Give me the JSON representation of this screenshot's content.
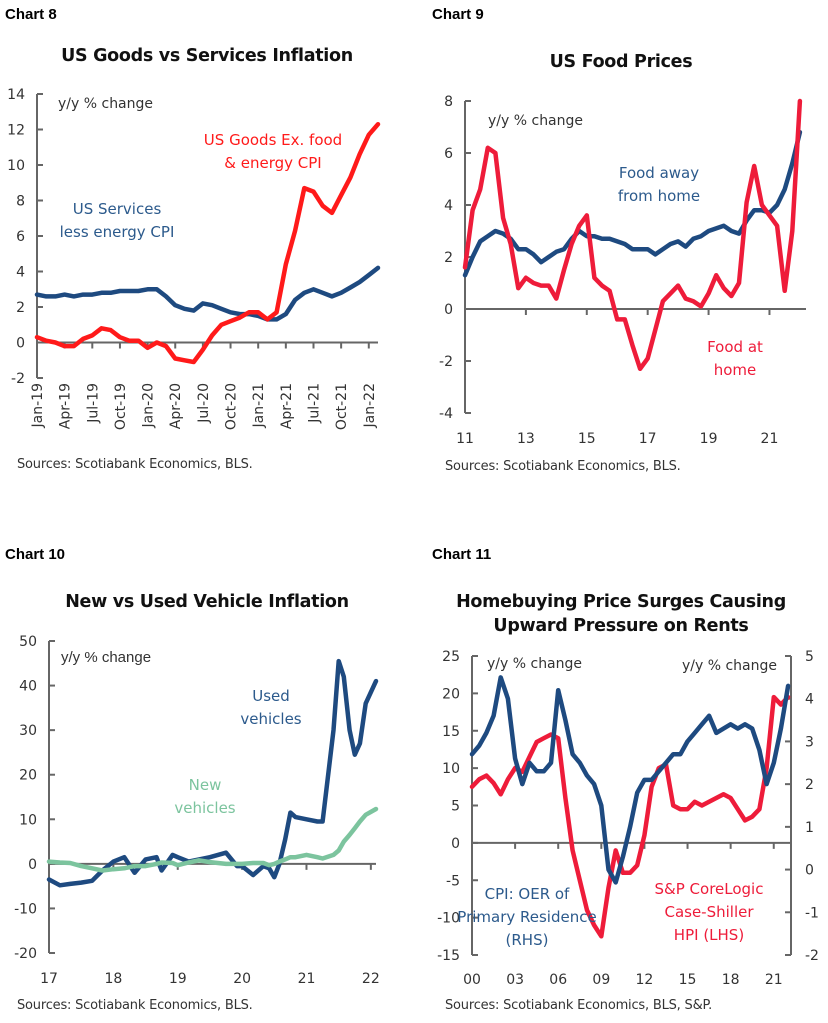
{
  "charts_page": {
    "panels": [
      {
        "label": "Chart 8",
        "title": "US Goods vs Services Inflation",
        "source": "Sources: Scotiabank Economics, BLS."
      },
      {
        "label": "Chart 9",
        "title": "US Food Prices",
        "source": "Sources: Scotiabank Economics, BLS."
      },
      {
        "label": "Chart 10",
        "title": "New vs Used Vehicle Inflation",
        "source": "Sources: Scotiabank Economics, BLS."
      },
      {
        "label": "Chart 11",
        "title_lines": [
          "Homebuying Price Surges Causing",
          "Upward Pressure on Rents"
        ],
        "source": "Sources: Scotiabank Economics, BLS, S&P."
      }
    ]
  },
  "colors": {
    "red": "#ff1a1a",
    "red2": "#ee1c3a",
    "navy": "#1e4a80",
    "green": "#7cc49e",
    "axis": "#666666"
  },
  "chart_data": [
    {
      "type": "line",
      "title": "US Goods vs Services Inflation",
      "ylabel": "y/y % change",
      "ylim": [
        -2,
        14
      ],
      "yticks": [
        "14",
        "12",
        "10",
        "8",
        "6",
        "4",
        "2",
        "0",
        "-2"
      ],
      "ytick_values": [
        14,
        12,
        10,
        8,
        6,
        4,
        2,
        0,
        -2
      ],
      "x_ticks": [
        "Jan-19",
        "Apr-19",
        "Jul-19",
        "Oct-19",
        "Jan-20",
        "Apr-20",
        "Jul-20",
        "Oct-20",
        "Jan-21",
        "Apr-21",
        "Jul-21",
        "Oct-21",
        "Jan-22"
      ],
      "x": [
        0,
        1,
        2,
        3,
        4,
        5,
        6,
        7,
        8,
        9,
        10,
        11,
        12,
        13,
        14,
        15,
        16,
        17,
        18,
        19,
        20,
        21,
        22,
        23,
        24,
        25,
        26,
        27,
        28,
        29,
        30,
        31,
        32,
        33,
        34,
        35,
        36,
        37
      ],
      "xlim": [
        0,
        37
      ],
      "series": [
        {
          "name": "US Services less energy CPI",
          "label_lines": [
            "US Services",
            "less energy CPI"
          ],
          "color": "#1e4a80",
          "values": [
            2.7,
            2.6,
            2.6,
            2.7,
            2.6,
            2.7,
            2.7,
            2.8,
            2.8,
            2.9,
            2.9,
            2.9,
            3.0,
            3.0,
            2.6,
            2.1,
            1.9,
            1.8,
            2.2,
            2.1,
            1.9,
            1.7,
            1.6,
            1.6,
            1.5,
            1.3,
            1.3,
            1.6,
            2.4,
            2.8,
            3.0,
            2.8,
            2.6,
            2.8,
            3.1,
            3.4,
            3.8,
            4.2
          ]
        },
        {
          "name": "US Goods Ex. food & energy CPI",
          "label_lines": [
            "US Goods Ex. food",
            "& energy CPI"
          ],
          "color": "#ff1a1a",
          "values": [
            0.3,
            0.1,
            0.0,
            -0.2,
            -0.2,
            0.2,
            0.4,
            0.8,
            0.7,
            0.3,
            0.1,
            0.1,
            -0.3,
            0.0,
            -0.2,
            -0.9,
            -1.0,
            -1.1,
            -0.4,
            0.4,
            1.0,
            1.2,
            1.4,
            1.7,
            1.7,
            1.3,
            1.7,
            4.4,
            6.3,
            8.7,
            8.5,
            7.7,
            7.3,
            8.3,
            9.3,
            10.6,
            11.7,
            12.3
          ]
        }
      ],
      "source": "Sources: Scotiabank Economics, BLS."
    },
    {
      "type": "line",
      "title": "US Food Prices",
      "ylabel": "y/y % change",
      "ylim": [
        -4,
        8
      ],
      "yticks": [
        "8",
        "6",
        "4",
        "2",
        "0",
        "-2",
        "-4"
      ],
      "ytick_values": [
        8,
        6,
        4,
        2,
        0,
        -2,
        -4
      ],
      "x_ticks": [
        "11",
        "13",
        "15",
        "17",
        "19",
        "21"
      ],
      "x_tick_values": [
        2011,
        2013,
        2015,
        2017,
        2019,
        2021
      ],
      "xlim": [
        2011,
        2022.2
      ],
      "x": [
        2011.0,
        2011.25,
        2011.5,
        2011.75,
        2012.0,
        2012.25,
        2012.5,
        2012.75,
        2013.0,
        2013.25,
        2013.5,
        2013.75,
        2014.0,
        2014.25,
        2014.5,
        2014.75,
        2015.0,
        2015.25,
        2015.5,
        2015.75,
        2016.0,
        2016.25,
        2016.5,
        2016.75,
        2017.0,
        2017.25,
        2017.5,
        2017.75,
        2018.0,
        2018.25,
        2018.5,
        2018.75,
        2019.0,
        2019.25,
        2019.5,
        2019.75,
        2020.0,
        2020.25,
        2020.5,
        2020.75,
        2021.0,
        2021.25,
        2021.5,
        2021.75,
        2022.0
      ],
      "series": [
        {
          "name": "Food away from home",
          "label_lines": [
            "Food away",
            "from home"
          ],
          "color": "#1e4a80",
          "values": [
            1.3,
            2.0,
            2.6,
            2.8,
            3.0,
            2.9,
            2.7,
            2.3,
            2.3,
            2.1,
            1.8,
            2.0,
            2.2,
            2.3,
            2.7,
            3.0,
            2.8,
            2.8,
            2.7,
            2.7,
            2.6,
            2.5,
            2.3,
            2.3,
            2.3,
            2.1,
            2.3,
            2.5,
            2.6,
            2.4,
            2.7,
            2.8,
            3.0,
            3.1,
            3.2,
            3.0,
            2.9,
            3.4,
            3.8,
            3.8,
            3.7,
            4.0,
            4.6,
            5.6,
            6.8
          ]
        },
        {
          "name": "Food at home",
          "label_lines": [
            "Food at",
            "home"
          ],
          "color": "#ee1c3a",
          "values": [
            1.6,
            3.8,
            4.6,
            6.2,
            6.0,
            3.5,
            2.5,
            0.8,
            1.2,
            1.0,
            0.9,
            0.9,
            0.4,
            1.5,
            2.5,
            3.2,
            3.6,
            1.2,
            0.9,
            0.7,
            -0.4,
            -0.4,
            -1.4,
            -2.3,
            -1.9,
            -0.8,
            0.3,
            0.6,
            0.9,
            0.4,
            0.3,
            0.1,
            0.6,
            1.3,
            0.8,
            0.5,
            1.0,
            4.1,
            5.5,
            4.0,
            3.6,
            3.2,
            0.7,
            3.0,
            8.0
          ]
        }
      ],
      "source": "Sources: Scotiabank Economics, BLS."
    },
    {
      "type": "line",
      "title": "New vs Used Vehicle Inflation",
      "ylabel": "y/y  % change",
      "ylim": [
        -20,
        50
      ],
      "yticks": [
        "50",
        "40",
        "30",
        "20",
        "10",
        "0",
        "-10",
        "-20"
      ],
      "ytick_values": [
        50,
        40,
        30,
        20,
        10,
        0,
        -10,
        -20
      ],
      "x_ticks": [
        "17",
        "18",
        "19",
        "20",
        "21",
        "22"
      ],
      "x_tick_values": [
        2017,
        2018,
        2019,
        2020,
        2021,
        2022
      ],
      "xlim": [
        2017,
        2022.08
      ],
      "x": [
        2017.0,
        2017.17,
        2017.33,
        2017.5,
        2017.67,
        2017.83,
        2018.0,
        2018.17,
        2018.33,
        2018.5,
        2018.67,
        2018.75,
        2018.92,
        2019.0,
        2019.17,
        2019.33,
        2019.5,
        2019.75,
        2019.92,
        2020.0,
        2020.17,
        2020.33,
        2020.42,
        2020.5,
        2020.58,
        2020.67,
        2020.75,
        2020.83,
        2021.0,
        2021.17,
        2021.25,
        2021.42,
        2021.5,
        2021.58,
        2021.67,
        2021.75,
        2021.83,
        2021.92,
        2022.08
      ],
      "series": [
        {
          "name": "Used vehicles",
          "label_lines": [
            "Used",
            "vehicles"
          ],
          "color": "#1e4a80",
          "values": [
            -3.5,
            -4.8,
            -4.5,
            -4.2,
            -3.8,
            -1.5,
            0.5,
            1.5,
            -2.0,
            1.0,
            1.5,
            -1.5,
            2.0,
            1.5,
            0.5,
            1.0,
            1.5,
            2.5,
            -0.5,
            -0.5,
            -2.5,
            -0.5,
            -1.0,
            -3.0,
            0.0,
            5.5,
            11.5,
            10.5,
            10.0,
            9.5,
            9.5,
            30.0,
            45.5,
            42.0,
            30.0,
            24.5,
            27.0,
            36.0,
            41.0
          ]
        },
        {
          "name": "New vehicles",
          "label_lines": [
            "New",
            "vehicles"
          ],
          "color": "#7cc49e",
          "values": [
            0.5,
            0.3,
            0.2,
            -0.5,
            -1.0,
            -1.5,
            -1.2,
            -1.0,
            -0.5,
            -0.5,
            0.0,
            0.3,
            0.2,
            -0.3,
            0.3,
            0.8,
            0.4,
            0.0,
            0.0,
            0.0,
            0.2,
            0.2,
            -0.3,
            0.0,
            0.5,
            1.0,
            1.5,
            1.5,
            2.0,
            1.5,
            1.2,
            2.0,
            3.0,
            5.0,
            6.5,
            8.0,
            9.5,
            11.0,
            12.3
          ]
        }
      ],
      "source": "Sources: Scotiabank Economics, BLS."
    },
    {
      "type": "line",
      "title": "Homebuying Price Surges Causing Upward Pressure on Rents",
      "ylabel": "y/y % change",
      "ylabel_right": "y/y % change",
      "ylim": [
        -15,
        25
      ],
      "ylim_right": [
        -2,
        5
      ],
      "yticks": [
        "25",
        "20",
        "15",
        "10",
        "5",
        "0",
        "-5",
        "-10",
        "-15"
      ],
      "ytick_values": [
        25,
        20,
        15,
        10,
        5,
        0,
        -5,
        -10,
        -15
      ],
      "yticks_right": [
        "5",
        "4",
        "3",
        "2",
        "1",
        "0",
        "-1",
        "-2"
      ],
      "ytick_values_right": [
        5,
        4,
        3,
        2,
        1,
        0,
        -1,
        -2
      ],
      "x_ticks": [
        "00",
        "03",
        "06",
        "09",
        "12",
        "15",
        "18",
        "21"
      ],
      "x_tick_values": [
        2000,
        2003,
        2006,
        2009,
        2012,
        2015,
        2018,
        2021
      ],
      "xlim": [
        2000,
        2022.2
      ],
      "x": [
        2000,
        2000.5,
        2001,
        2001.5,
        2002,
        2002.5,
        2003,
        2003.5,
        2004,
        2004.5,
        2005,
        2005.5,
        2006,
        2006.5,
        2007,
        2007.5,
        2008,
        2008.5,
        2009,
        2009.5,
        2010,
        2010.5,
        2011,
        2011.5,
        2012,
        2012.5,
        2013,
        2013.5,
        2014,
        2014.5,
        2015,
        2015.5,
        2016,
        2016.5,
        2017,
        2017.5,
        2018,
        2018.5,
        2019,
        2019.5,
        2020,
        2020.5,
        2021,
        2021.5,
        2022
      ],
      "series": [
        {
          "name": "S&P CoreLogic Case-Shiller HPI (LHS)",
          "axis": "left",
          "label_lines": [
            "S&P CoreLogic",
            "Case-Shiller",
            "HPI (LHS)"
          ],
          "color": "#ee1c3a",
          "values": [
            7.5,
            8.5,
            9.0,
            8.0,
            6.5,
            8.5,
            10.0,
            9.5,
            11.5,
            13.5,
            14.0,
            14.5,
            14.0,
            6.0,
            -1.0,
            -5.0,
            -9.0,
            -11.0,
            -12.5,
            -6.0,
            -1.0,
            -4.0,
            -4.0,
            -3.0,
            1.0,
            7.5,
            10.0,
            10.5,
            5.0,
            4.5,
            4.5,
            5.5,
            5.0,
            5.5,
            6.0,
            6.5,
            6.0,
            4.5,
            3.0,
            3.5,
            4.5,
            10.0,
            19.5,
            18.5,
            19.5
          ]
        },
        {
          "name": "CPI: OER of Primary Residence (RHS)",
          "axis": "right",
          "label_lines": [
            "CPI: OER of",
            "Primary Residence",
            "(RHS)"
          ],
          "color": "#1e4a80",
          "values": [
            2.7,
            2.9,
            3.2,
            3.6,
            4.5,
            4.0,
            2.6,
            2.0,
            2.5,
            2.3,
            2.3,
            2.5,
            4.2,
            3.5,
            2.7,
            2.5,
            2.2,
            2.0,
            1.5,
            0.0,
            -0.3,
            0.3,
            1.0,
            1.8,
            2.1,
            2.1,
            2.3,
            2.5,
            2.7,
            2.7,
            3.0,
            3.2,
            3.4,
            3.6,
            3.2,
            3.3,
            3.4,
            3.3,
            3.4,
            3.3,
            2.8,
            2.0,
            2.5,
            3.3,
            4.3
          ]
        }
      ],
      "source": "Sources: Scotiabank Economics, BLS, S&P."
    }
  ]
}
